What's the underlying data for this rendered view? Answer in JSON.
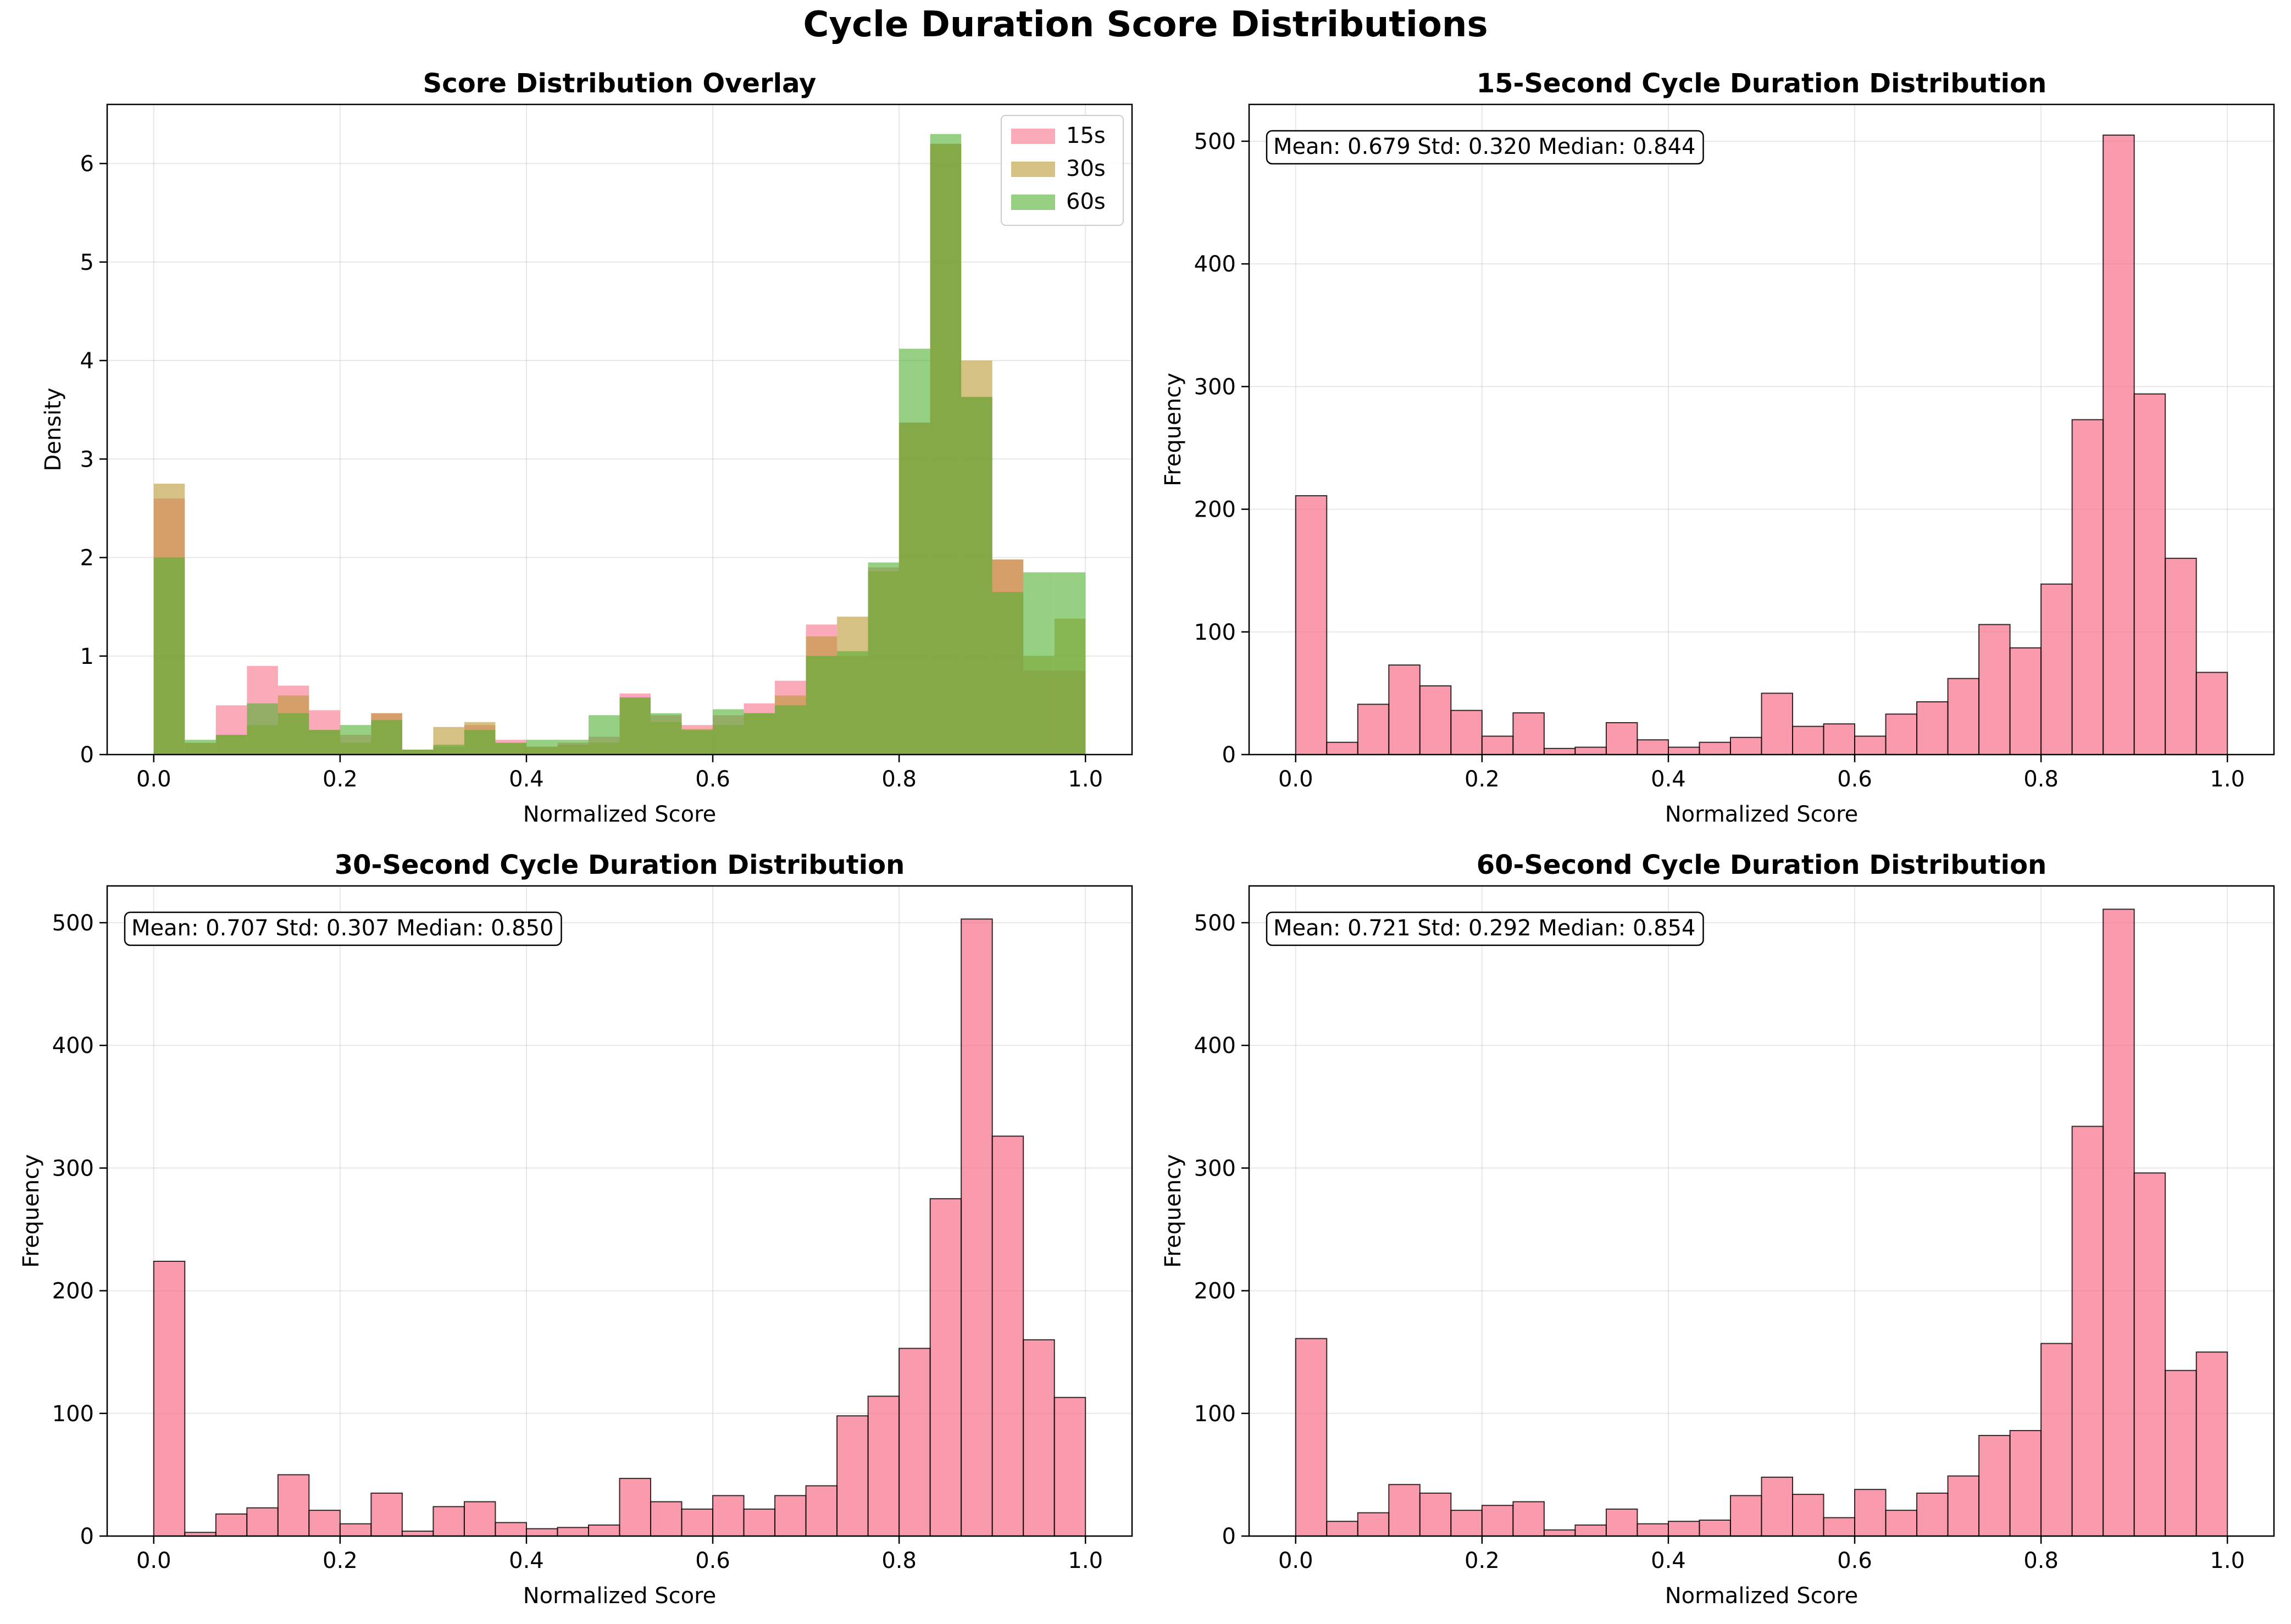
{
  "figure": {
    "title": "Cycle Duration Score Distributions"
  },
  "colors": {
    "c15": "#f77189",
    "c30": "#bb9832",
    "c60": "#50b131",
    "hist": "#f77189"
  },
  "chart_data": [
    {
      "type": "bar",
      "title": "Score Distribution Overlay",
      "xlabel": "Normalized Score",
      "ylabel": "Density",
      "xlim": [
        -0.05,
        1.05
      ],
      "ylim": [
        0,
        6.6
      ],
      "xticks": [
        0.0,
        0.2,
        0.4,
        0.6,
        0.8,
        1.0
      ],
      "xtick_labels": [
        "0.0",
        "0.2",
        "0.4",
        "0.6",
        "0.8",
        "1.0"
      ],
      "yticks": [
        0,
        1,
        2,
        3,
        4,
        5,
        6
      ],
      "ytick_labels": [
        "0",
        "1",
        "2",
        "3",
        "4",
        "5",
        "6"
      ],
      "grid": true,
      "legend": "top-right",
      "bins": {
        "start": 0.0,
        "end": 1.0,
        "count": 30
      },
      "series": [
        {
          "name": "15s",
          "values": [
            2.6,
            0.12,
            0.5,
            0.9,
            0.7,
            0.45,
            0.2,
            0.42,
            0.05,
            0.08,
            0.3,
            0.15,
            0.08,
            0.12,
            0.18,
            0.62,
            0.4,
            0.3,
            0.4,
            0.52,
            0.75,
            1.32,
            1.0,
            1.9,
            3.37,
            6.2,
            3.63,
            1.98,
            0.85,
            0.85
          ]
        },
        {
          "name": "30s",
          "values": [
            2.75,
            0.12,
            0.2,
            0.3,
            0.6,
            0.25,
            0.12,
            0.42,
            0.05,
            0.28,
            0.33,
            0.12,
            0.08,
            0.1,
            0.12,
            0.58,
            0.33,
            0.26,
            0.3,
            0.42,
            0.6,
            1.2,
            1.4,
            1.86,
            3.37,
            6.2,
            4.0,
            1.98,
            1.0,
            1.38
          ]
        },
        {
          "name": "60s",
          "values": [
            2.0,
            0.15,
            0.2,
            0.52,
            0.42,
            0.25,
            0.3,
            0.35,
            0.05,
            0.1,
            0.25,
            0.12,
            0.15,
            0.15,
            0.4,
            0.58,
            0.42,
            0.25,
            0.46,
            0.42,
            0.5,
            1.0,
            1.05,
            1.95,
            4.12,
            6.3,
            3.63,
            1.65,
            1.85,
            1.85
          ]
        }
      ]
    },
    {
      "type": "bar",
      "title": "15-Second Cycle Duration Distribution",
      "xlabel": "Normalized Score",
      "ylabel": "Frequency",
      "xlim": [
        -0.05,
        1.05
      ],
      "ylim": [
        0,
        530
      ],
      "xticks": [
        0.0,
        0.2,
        0.4,
        0.6,
        0.8,
        1.0
      ],
      "xtick_labels": [
        "0.0",
        "0.2",
        "0.4",
        "0.6",
        "0.8",
        "1.0"
      ],
      "yticks": [
        0,
        100,
        200,
        300,
        400,
        500
      ],
      "ytick_labels": [
        "0",
        "100",
        "200",
        "300",
        "400",
        "500"
      ],
      "grid": true,
      "annotation": "Mean: 0.679 Std: 0.320 Median: 0.844",
      "bins": {
        "start": 0.0,
        "end": 1.0,
        "count": 30
      },
      "values": [
        211,
        10,
        41,
        73,
        56,
        36,
        15,
        34,
        5,
        6,
        26,
        12,
        6,
        10,
        14,
        50,
        23,
        25,
        15,
        33,
        43,
        62,
        106,
        87,
        139,
        273,
        505,
        294,
        160,
        67
      ]
    },
    {
      "type": "bar",
      "title": "30-Second Cycle Duration Distribution",
      "xlabel": "Normalized Score",
      "ylabel": "Frequency",
      "xlim": [
        -0.05,
        1.05
      ],
      "ylim": [
        0,
        530
      ],
      "xticks": [
        0.0,
        0.2,
        0.4,
        0.6,
        0.8,
        1.0
      ],
      "xtick_labels": [
        "0.0",
        "0.2",
        "0.4",
        "0.6",
        "0.8",
        "1.0"
      ],
      "yticks": [
        0,
        100,
        200,
        300,
        400,
        500
      ],
      "ytick_labels": [
        "0",
        "100",
        "200",
        "300",
        "400",
        "500"
      ],
      "grid": true,
      "annotation": "Mean: 0.707 Std: 0.307 Median: 0.850",
      "bins": {
        "start": 0.0,
        "end": 1.0,
        "count": 30
      },
      "values": [
        224,
        3,
        18,
        23,
        50,
        21,
        10,
        35,
        4,
        24,
        28,
        11,
        6,
        7,
        9,
        47,
        28,
        22,
        33,
        22,
        33,
        41,
        98,
        114,
        153,
        275,
        503,
        326,
        160,
        113
      ]
    },
    {
      "type": "bar",
      "title": "60-Second Cycle Duration Distribution",
      "xlabel": "Normalized Score",
      "ylabel": "Frequency",
      "xlim": [
        -0.05,
        1.05
      ],
      "ylim": [
        0,
        530
      ],
      "xticks": [
        0.0,
        0.2,
        0.4,
        0.6,
        0.8,
        1.0
      ],
      "xtick_labels": [
        "0.0",
        "0.2",
        "0.4",
        "0.6",
        "0.8",
        "1.0"
      ],
      "yticks": [
        0,
        100,
        200,
        300,
        400,
        500
      ],
      "ytick_labels": [
        "0",
        "100",
        "200",
        "300",
        "400",
        "500"
      ],
      "grid": true,
      "annotation": "Mean: 0.721 Std: 0.292 Median: 0.854",
      "bins": {
        "start": 0.0,
        "end": 1.0,
        "count": 30
      },
      "values": [
        161,
        12,
        19,
        42,
        35,
        21,
        25,
        28,
        5,
        9,
        22,
        10,
        12,
        13,
        33,
        48,
        34,
        15,
        38,
        21,
        35,
        49,
        82,
        86,
        157,
        334,
        511,
        296,
        135,
        150
      ]
    }
  ]
}
